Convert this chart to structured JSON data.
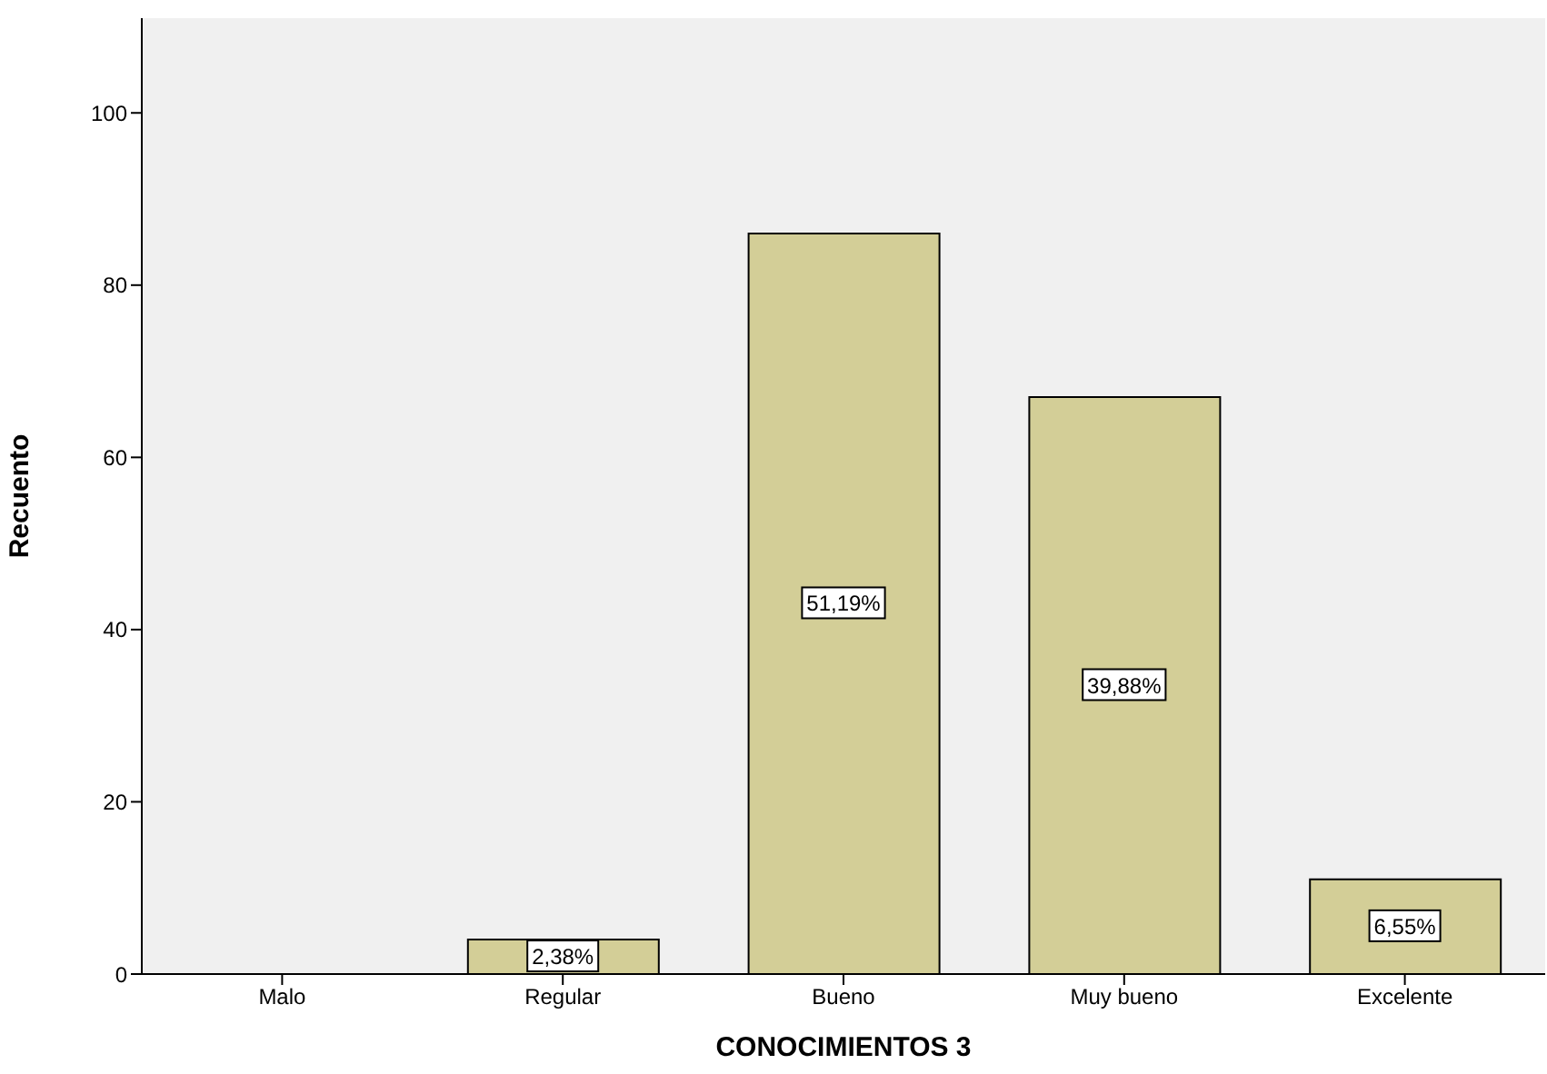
{
  "chart_data": {
    "type": "bar",
    "xlabel": "CONOCIMIENTOS 3",
    "ylabel": "Recuento",
    "categories": [
      "Malo",
      "Regular",
      "Bueno",
      "Muy bueno",
      "Excelente"
    ],
    "values": [
      0,
      4,
      86,
      67,
      11
    ],
    "annotations": [
      "2,38%",
      "51,19%",
      "39,88%",
      "6,55%"
    ],
    "color": "#d3ce97",
    "ylim": [
      0,
      111
    ],
    "yticks": [
      0,
      20,
      40,
      60,
      80,
      100
    ],
    "grid": false
  }
}
